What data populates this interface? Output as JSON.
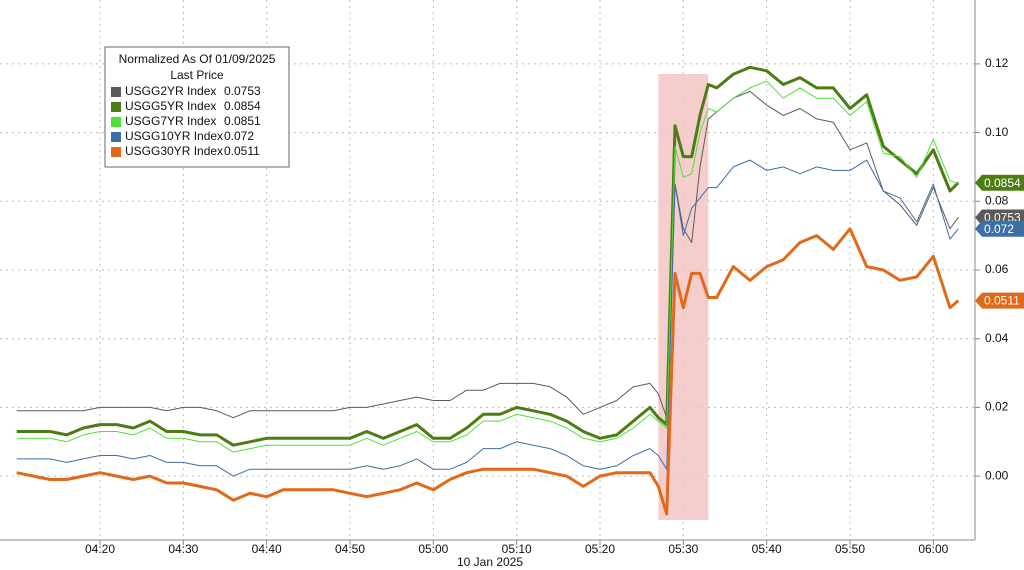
{
  "chart_data": {
    "type": "line",
    "legend_title": "Normalized As Of 01/09/2025",
    "legend_subtitle": "Last Price",
    "xlabel": "10 Jan 2025",
    "x": [
      "04:10",
      "04:12",
      "04:14",
      "04:16",
      "04:18",
      "04:20",
      "04:22",
      "04:24",
      "04:26",
      "04:28",
      "04:30",
      "04:32",
      "04:34",
      "04:36",
      "04:38",
      "04:40",
      "04:42",
      "04:44",
      "04:46",
      "04:48",
      "04:50",
      "04:52",
      "04:54",
      "04:56",
      "04:58",
      "05:00",
      "05:02",
      "05:04",
      "05:06",
      "05:08",
      "05:10",
      "05:12",
      "05:14",
      "05:16",
      "05:18",
      "05:20",
      "05:22",
      "05:24",
      "05:26",
      "05:27",
      "05:28",
      "05:29",
      "05:30",
      "05:31",
      "05:32",
      "05:33",
      "05:34",
      "05:36",
      "05:38",
      "05:40",
      "05:42",
      "05:44",
      "05:46",
      "05:48",
      "05:50",
      "05:52",
      "05:54",
      "05:56",
      "05:58",
      "06:00",
      "06:02",
      "06:03"
    ],
    "xlim": [
      "04:08",
      "06:05"
    ],
    "xticks": [
      "04:20",
      "04:30",
      "04:40",
      "04:50",
      "05:00",
      "05:10",
      "05:20",
      "05:30",
      "05:40",
      "05:50",
      "06:00"
    ],
    "ylim": [
      -0.0186,
      0.1386
    ],
    "yticks": [
      {
        "value": 0,
        "label": "0.00"
      },
      0.02,
      0.04,
      0.06,
      0.08,
      {
        "value": 0.1,
        "label": "0.10"
      },
      0.12
    ],
    "grid": true,
    "highlight_x": [
      "05:27",
      "05:33"
    ],
    "highlight_color": "#f5c4c4",
    "series": [
      {
        "name": "USGG2YR Index",
        "color": "#5a5a5a",
        "width": 1,
        "last": 0.0753,
        "tag": true,
        "values": [
          0.019,
          0.019,
          0.019,
          0.019,
          0.019,
          0.02,
          0.02,
          0.02,
          0.02,
          0.019,
          0.02,
          0.02,
          0.019,
          0.017,
          0.019,
          0.019,
          0.019,
          0.019,
          0.019,
          0.019,
          0.02,
          0.02,
          0.021,
          0.022,
          0.023,
          0.022,
          0.022,
          0.025,
          0.025,
          0.027,
          0.027,
          0.027,
          0.026,
          0.023,
          0.018,
          0.02,
          0.022,
          0.026,
          0.027,
          0.024,
          0.017,
          0.085,
          0.072,
          0.068,
          0.09,
          0.104,
          0.106,
          0.11,
          0.112,
          0.108,
          0.105,
          0.107,
          0.104,
          0.103,
          0.095,
          0.097,
          0.083,
          0.079,
          0.073,
          0.084,
          0.072,
          0.0753
        ]
      },
      {
        "name": "USGG5YR Index",
        "color": "#4b7d12",
        "width": 3,
        "last": 0.0854,
        "tag": true,
        "values": [
          0.013,
          0.013,
          0.013,
          0.012,
          0.014,
          0.015,
          0.015,
          0.014,
          0.016,
          0.013,
          0.013,
          0.012,
          0.012,
          0.009,
          0.01,
          0.011,
          0.011,
          0.011,
          0.011,
          0.011,
          0.011,
          0.013,
          0.011,
          0.013,
          0.015,
          0.011,
          0.011,
          0.014,
          0.018,
          0.018,
          0.02,
          0.019,
          0.018,
          0.016,
          0.013,
          0.011,
          0.012,
          0.016,
          0.02,
          0.017,
          0.015,
          0.102,
          0.093,
          0.093,
          0.105,
          0.114,
          0.113,
          0.117,
          0.119,
          0.118,
          0.114,
          0.116,
          0.113,
          0.113,
          0.107,
          0.111,
          0.096,
          0.092,
          0.088,
          0.095,
          0.083,
          0.0854
        ]
      },
      {
        "name": "USGG7YR Index",
        "color": "#4fe03a",
        "width": 1,
        "last": 0.0851,
        "tag": false,
        "values": [
          0.011,
          0.011,
          0.011,
          0.01,
          0.012,
          0.013,
          0.013,
          0.012,
          0.014,
          0.011,
          0.011,
          0.01,
          0.01,
          0.007,
          0.008,
          0.009,
          0.009,
          0.009,
          0.009,
          0.009,
          0.009,
          0.011,
          0.009,
          0.011,
          0.013,
          0.01,
          0.01,
          0.012,
          0.016,
          0.016,
          0.018,
          0.017,
          0.016,
          0.014,
          0.011,
          0.01,
          0.011,
          0.014,
          0.018,
          0.016,
          0.014,
          0.096,
          0.087,
          0.088,
          0.1,
          0.107,
          0.106,
          0.11,
          0.113,
          0.115,
          0.11,
          0.113,
          0.11,
          0.11,
          0.105,
          0.109,
          0.094,
          0.093,
          0.087,
          0.098,
          0.086,
          0.0851
        ]
      },
      {
        "name": "USGG10YR Index",
        "color": "#3b6fa6",
        "width": 1,
        "last": 0.072,
        "tag": true,
        "values": [
          0.005,
          0.005,
          0.005,
          0.004,
          0.005,
          0.006,
          0.006,
          0.005,
          0.006,
          0.004,
          0.004,
          0.003,
          0.003,
          0.0,
          0.002,
          0.002,
          0.002,
          0.002,
          0.002,
          0.002,
          0.002,
          0.003,
          0.002,
          0.003,
          0.005,
          0.002,
          0.002,
          0.004,
          0.008,
          0.008,
          0.01,
          0.009,
          0.008,
          0.006,
          0.003,
          0.002,
          0.003,
          0.006,
          0.008,
          0.006,
          0.002,
          0.085,
          0.07,
          0.078,
          0.081,
          0.084,
          0.084,
          0.09,
          0.092,
          0.089,
          0.09,
          0.088,
          0.09,
          0.089,
          0.089,
          0.092,
          0.083,
          0.081,
          0.074,
          0.085,
          0.069,
          0.072
        ]
      },
      {
        "name": "USGG30YR Index",
        "color": "#e0691a",
        "width": 3,
        "last": 0.0511,
        "tag": true,
        "values": [
          0.001,
          0.0,
          -0.001,
          -0.001,
          0.0,
          0.001,
          0.0,
          -0.001,
          0.0,
          -0.002,
          -0.002,
          -0.003,
          -0.004,
          -0.007,
          -0.005,
          -0.006,
          -0.004,
          -0.004,
          -0.004,
          -0.004,
          -0.005,
          -0.006,
          -0.005,
          -0.004,
          -0.002,
          -0.004,
          -0.001,
          0.001,
          0.002,
          0.002,
          0.002,
          0.002,
          0.001,
          0.0,
          -0.003,
          0.0,
          0.001,
          0.001,
          0.001,
          -0.003,
          -0.011,
          0.059,
          0.049,
          0.059,
          0.059,
          0.052,
          0.052,
          0.061,
          0.057,
          0.061,
          0.063,
          0.068,
          0.07,
          0.066,
          0.072,
          0.061,
          0.06,
          0.057,
          0.058,
          0.064,
          0.049,
          0.0511
        ]
      }
    ]
  }
}
